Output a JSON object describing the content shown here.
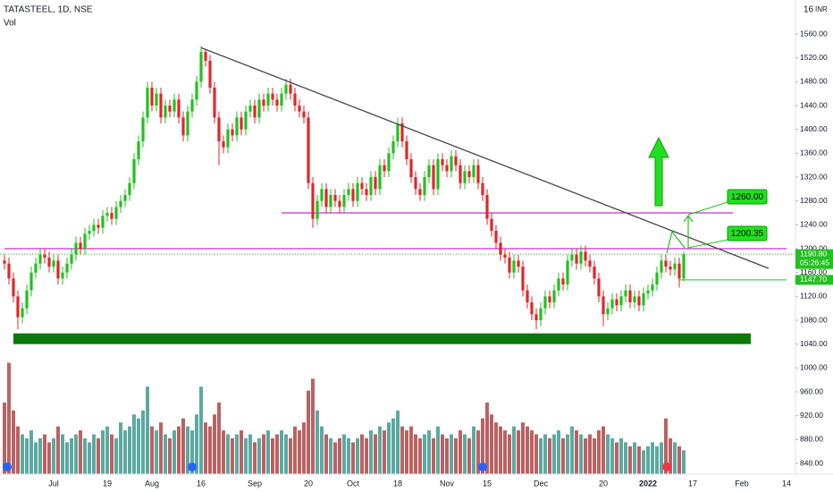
{
  "chart_data": {
    "type": "candlestick",
    "title": "TATASTEEL, 1D, NSE",
    "volume_label": "Vol",
    "currency": "INR",
    "corner_text": "16",
    "categories": [
      null,
      null,
      null,
      null,
      null,
      null,
      null,
      null,
      null,
      null,
      null,
      "Jul",
      null,
      null,
      null,
      null,
      null,
      null,
      null,
      null,
      null,
      null,
      null,
      "19",
      null,
      null,
      null,
      null,
      null,
      null,
      null,
      null,
      null,
      "Aug",
      null,
      null,
      null,
      null,
      null,
      null,
      null,
      null,
      null,
      null,
      "16",
      null,
      null,
      null,
      null,
      null,
      null,
      null,
      null,
      null,
      null,
      null,
      "Sep",
      null,
      null,
      null,
      null,
      null,
      null,
      null,
      null,
      null,
      null,
      null,
      "20",
      null,
      null,
      null,
      null,
      null,
      null,
      null,
      null,
      null,
      "Oct",
      null,
      null,
      null,
      null,
      null,
      null,
      null,
      null,
      null,
      "18",
      null,
      null,
      null,
      null,
      null,
      null,
      null,
      null,
      null,
      null,
      "Nov",
      null,
      null,
      null,
      null,
      null,
      null,
      null,
      null,
      "15",
      null,
      null,
      null,
      null,
      null,
      null,
      null,
      null,
      null,
      null,
      null,
      "Dec",
      null,
      null,
      null,
      null,
      null,
      null,
      null,
      null,
      null,
      null,
      null,
      null,
      null,
      "20",
      null,
      null,
      null,
      null,
      null,
      null,
      null,
      null,
      null,
      "2022",
      null,
      null,
      null,
      null,
      null,
      null,
      null,
      null,
      null,
      "17",
      null,
      null,
      null,
      null,
      null,
      null,
      null,
      null,
      null,
      null,
      "Feb",
      null,
      null,
      null,
      null,
      null,
      null,
      null,
      null,
      null,
      "14"
    ],
    "open": [
      1180,
      1175,
      1150,
      1120,
      1085,
      1100,
      1130,
      1160,
      1175,
      1190,
      1185,
      1170,
      1180,
      1150,
      1160,
      1175,
      1190,
      1210,
      1200,
      1225,
      1230,
      1240,
      1235,
      1255,
      1260,
      1250,
      1270,
      1280,
      1290,
      1310,
      1350,
      1380,
      1420,
      1470,
      1440,
      1460,
      1420,
      1440,
      1430,
      1450,
      1420,
      1390,
      1430,
      1450,
      1480,
      1530,
      1515,
      1470,
      1420,
      1380,
      1370,
      1400,
      1390,
      1420,
      1400,
      1430,
      1440,
      1420,
      1450,
      1440,
      1460,
      1450,
      1440,
      1460,
      1475,
      1460,
      1440,
      1430,
      1420,
      1310,
      1250,
      1280,
      1300,
      1270,
      1290,
      1280,
      1270,
      1290,
      1300,
      1280,
      1310,
      1300,
      1290,
      1320,
      1300,
      1340,
      1330,
      1360,
      1380,
      1410,
      1380,
      1350,
      1320,
      1300,
      1290,
      1320,
      1340,
      1300,
      1350,
      1340,
      1330,
      1355,
      1340,
      1310,
      1330,
      1320,
      1340,
      1310,
      1290,
      1250,
      1230,
      1210,
      1190,
      1185,
      1160,
      1180,
      1170,
      1130,
      1110,
      1090,
      1080,
      1100,
      1120,
      1110,
      1130,
      1150,
      1140,
      1180,
      1190,
      1175,
      1195,
      1180,
      1170,
      1150,
      1120,
      1090,
      1100,
      1115,
      1105,
      1120,
      1130,
      1110,
      1120,
      1105,
      1125,
      1130,
      1140,
      1160,
      1180,
      1170,
      1165,
      1175,
      1150,
      null,
      null,
      null,
      null,
      null,
      null,
      null,
      null,
      null,
      null,
      null,
      null,
      null,
      null,
      null,
      null,
      null,
      null,
      null,
      null,
      null,
      null,
      null
    ],
    "high": [
      1190,
      1185,
      1160,
      1130,
      1110,
      1140,
      1170,
      1185,
      1200,
      1200,
      1195,
      1190,
      1190,
      1170,
      1185,
      1200,
      1220,
      1220,
      1235,
      1240,
      1250,
      1250,
      1265,
      1270,
      1270,
      1280,
      1290,
      1300,
      1320,
      1360,
      1390,
      1430,
      1480,
      1480,
      1470,
      1470,
      1450,
      1450,
      1460,
      1460,
      1430,
      1440,
      1460,
      1490,
      1540,
      1535,
      1525,
      1480,
      1430,
      1390,
      1410,
      1410,
      1430,
      1430,
      1440,
      1450,
      1450,
      1460,
      1460,
      1470,
      1470,
      1460,
      1470,
      1485,
      1485,
      1470,
      1450,
      1440,
      1430,
      1320,
      1290,
      1310,
      1310,
      1300,
      1300,
      1290,
      1300,
      1310,
      1310,
      1320,
      1320,
      1310,
      1330,
      1330,
      1350,
      1350,
      1370,
      1390,
      1420,
      1420,
      1390,
      1360,
      1330,
      1310,
      1330,
      1350,
      1350,
      1360,
      1360,
      1350,
      1365,
      1365,
      1350,
      1340,
      1340,
      1350,
      1350,
      1320,
      1300,
      1260,
      1240,
      1220,
      1200,
      1195,
      1190,
      1190,
      1180,
      1140,
      1120,
      1100,
      1110,
      1130,
      1130,
      1140,
      1160,
      1160,
      1190,
      1200,
      1200,
      1205,
      1205,
      1190,
      1180,
      1160,
      1130,
      1110,
      1125,
      1125,
      1130,
      1140,
      1140,
      1130,
      1130,
      1135,
      1140,
      1150,
      1170,
      1190,
      1190,
      1180,
      1185,
      1185,
      1195,
      null,
      null,
      null,
      null,
      null,
      null,
      null,
      null,
      null,
      null,
      null,
      null,
      null,
      null,
      null,
      null,
      null,
      null,
      null,
      null,
      null,
      null,
      null
    ],
    "low": [
      1165,
      1140,
      1110,
      1065,
      1075,
      1090,
      1120,
      1150,
      1165,
      1175,
      1160,
      1160,
      1140,
      1140,
      1150,
      1165,
      1180,
      1190,
      1190,
      1215,
      1220,
      1225,
      1225,
      1245,
      1240,
      1240,
      1260,
      1270,
      1280,
      1300,
      1340,
      1370,
      1410,
      1430,
      1430,
      1410,
      1410,
      1420,
      1420,
      1410,
      1380,
      1380,
      1420,
      1440,
      1470,
      1505,
      1460,
      1410,
      1340,
      1360,
      1360,
      1380,
      1380,
      1390,
      1390,
      1420,
      1410,
      1410,
      1430,
      1430,
      1440,
      1430,
      1430,
      1450,
      1450,
      1430,
      1420,
      1410,
      1300,
      1235,
      1240,
      1270,
      1260,
      1260,
      1270,
      1260,
      1260,
      1280,
      1270,
      1270,
      1290,
      1280,
      1280,
      1290,
      1290,
      1320,
      1320,
      1350,
      1370,
      1370,
      1340,
      1310,
      1290,
      1280,
      1280,
      1310,
      1290,
      1290,
      1330,
      1320,
      1320,
      1330,
      1300,
      1300,
      1310,
      1310,
      1300,
      1280,
      1240,
      1220,
      1200,
      1180,
      1175,
      1150,
      1150,
      1160,
      1120,
      1100,
      1080,
      1065,
      1070,
      1090,
      1100,
      1100,
      1120,
      1130,
      1130,
      1170,
      1165,
      1165,
      1170,
      1160,
      1140,
      1110,
      1070,
      1080,
      1090,
      1095,
      1095,
      1110,
      1100,
      1100,
      1095,
      1095,
      1115,
      1120,
      1130,
      1150,
      1160,
      1155,
      1155,
      1135,
      1145,
      null,
      null,
      null,
      null,
      null,
      null,
      null,
      null,
      null,
      null,
      null,
      null,
      null,
      null,
      null,
      null,
      null,
      null,
      null,
      null,
      null,
      null,
      null
    ],
    "close": [
      1175,
      1150,
      1120,
      1085,
      1100,
      1130,
      1160,
      1175,
      1190,
      1185,
      1170,
      1180,
      1150,
      1160,
      1175,
      1190,
      1210,
      1200,
      1225,
      1230,
      1240,
      1235,
      1255,
      1260,
      1250,
      1270,
      1280,
      1290,
      1310,
      1350,
      1380,
      1420,
      1470,
      1440,
      1460,
      1420,
      1440,
      1430,
      1450,
      1420,
      1390,
      1430,
      1450,
      1480,
      1530,
      1515,
      1470,
      1420,
      1380,
      1370,
      1400,
      1390,
      1420,
      1400,
      1430,
      1440,
      1420,
      1450,
      1440,
      1460,
      1450,
      1440,
      1460,
      1475,
      1460,
      1440,
      1430,
      1420,
      1310,
      1250,
      1280,
      1300,
      1270,
      1290,
      1280,
      1270,
      1290,
      1300,
      1280,
      1310,
      1300,
      1290,
      1320,
      1300,
      1340,
      1330,
      1360,
      1380,
      1410,
      1380,
      1350,
      1320,
      1300,
      1290,
      1320,
      1340,
      1300,
      1350,
      1340,
      1330,
      1355,
      1340,
      1310,
      1330,
      1320,
      1340,
      1310,
      1290,
      1250,
      1230,
      1210,
      1190,
      1185,
      1160,
      1180,
      1170,
      1130,
      1110,
      1090,
      1080,
      1100,
      1120,
      1110,
      1130,
      1150,
      1140,
      1180,
      1190,
      1175,
      1195,
      1180,
      1170,
      1150,
      1120,
      1090,
      1100,
      1115,
      1105,
      1120,
      1130,
      1110,
      1120,
      1105,
      1125,
      1130,
      1140,
      1160,
      1180,
      1170,
      1165,
      1175,
      1150,
      1190.8,
      null,
      null,
      null,
      null,
      null,
      null,
      null,
      null,
      null,
      null,
      null,
      null,
      null,
      null,
      null,
      null,
      null,
      null,
      null,
      null,
      null,
      null,
      null
    ],
    "volume": [
      18,
      28,
      16,
      12,
      10,
      9,
      11,
      8,
      9,
      10,
      8,
      9,
      12,
      10,
      8,
      9,
      10,
      11,
      9,
      8,
      10,
      9,
      11,
      12,
      10,
      9,
      13,
      11,
      12,
      15,
      14,
      16,
      22,
      12,
      11,
      13,
      10,
      9,
      11,
      12,
      14,
      12,
      11,
      15,
      22,
      13,
      12,
      15,
      18,
      11,
      10,
      9,
      10,
      11,
      9,
      10,
      8,
      9,
      10,
      11,
      9,
      10,
      11,
      10,
      9,
      12,
      11,
      13,
      21,
      24,
      16,
      12,
      10,
      9,
      8,
      9,
      10,
      9,
      8,
      9,
      10,
      9,
      11,
      10,
      12,
      11,
      13,
      14,
      16,
      12,
      11,
      12,
      10,
      9,
      10,
      11,
      9,
      12,
      10,
      9,
      10,
      9,
      11,
      10,
      9,
      12,
      11,
      14,
      18,
      15,
      13,
      12,
      11,
      10,
      12,
      11,
      13,
      12,
      11,
      10,
      9,
      10,
      9,
      10,
      11,
      9,
      10,
      12,
      11,
      10,
      9,
      10,
      9,
      11,
      12,
      10,
      9,
      8,
      9,
      8,
      7,
      8,
      7,
      6,
      7,
      8,
      7,
      8,
      14,
      9,
      8,
      7,
      6,
      null,
      null,
      null,
      null,
      null,
      null,
      null,
      null,
      null,
      null,
      null,
      null,
      null,
      null,
      null,
      null,
      null,
      null,
      null,
      null,
      null,
      null,
      null
    ],
    "up_color": "#22c11f",
    "down_color": "#e0262b",
    "up_volume_color": "#3f9a90",
    "down_volume_color": "#b04545",
    "ylim": [
      822,
      1617
    ],
    "vlim": [
      0,
      36
    ],
    "yticks": [
      {
        "value": 840,
        "label": "840.00"
      },
      {
        "value": 880,
        "label": "880.00"
      },
      {
        "value": 920,
        "label": "920.00"
      },
      {
        "value": 960,
        "label": "960.00"
      },
      {
        "value": 1000,
        "label": "1000.00"
      },
      {
        "value": 1040,
        "label": "1040.00"
      },
      {
        "value": 1080,
        "label": "1080.00"
      },
      {
        "value": 1120,
        "label": "1120.00"
      },
      {
        "value": 1160,
        "label": "1160.00"
      },
      {
        "value": 1200,
        "label": "1200.00"
      },
      {
        "value": 1240,
        "label": "1240.00"
      },
      {
        "value": 1280,
        "label": "1280.00"
      },
      {
        "value": 1320,
        "label": "1320.00"
      },
      {
        "value": 1360,
        "label": "1360.00"
      },
      {
        "value": 1400,
        "label": "1400.00"
      },
      {
        "value": 1440,
        "label": "1440.00"
      },
      {
        "value": 1480,
        "label": "1480.00"
      },
      {
        "value": 1520,
        "label": "1520.00"
      },
      {
        "value": 1560,
        "label": "1560.00"
      }
    ],
    "trendline": {
      "x": [
        44,
        171
      ],
      "y": [
        1537,
        1167
      ],
      "color": "#444444"
    },
    "levels": [
      {
        "value": 1260,
        "x": [
          62,
          163
        ],
        "color": "#b000b0"
      },
      {
        "value": 1200,
        "x": [
          0,
          175
        ],
        "color": "#b000b0"
      },
      {
        "value": 1147.7,
        "x": [
          151,
          175
        ],
        "color": "#22c11f"
      }
    ],
    "support_zone": {
      "y": [
        1040,
        1058
      ],
      "x": [
        2,
        167
      ],
      "color": "#0b7a0b"
    },
    "notes": [
      "1260.00",
      "1200.35"
    ],
    "price_tags": [
      {
        "value": 1190.8,
        "label": "1190.80",
        "countdown": "05:26:45",
        "color": "#22c11f"
      },
      {
        "value": 1147.7,
        "label": "1147.70",
        "color": "#22c11f"
      }
    ]
  }
}
